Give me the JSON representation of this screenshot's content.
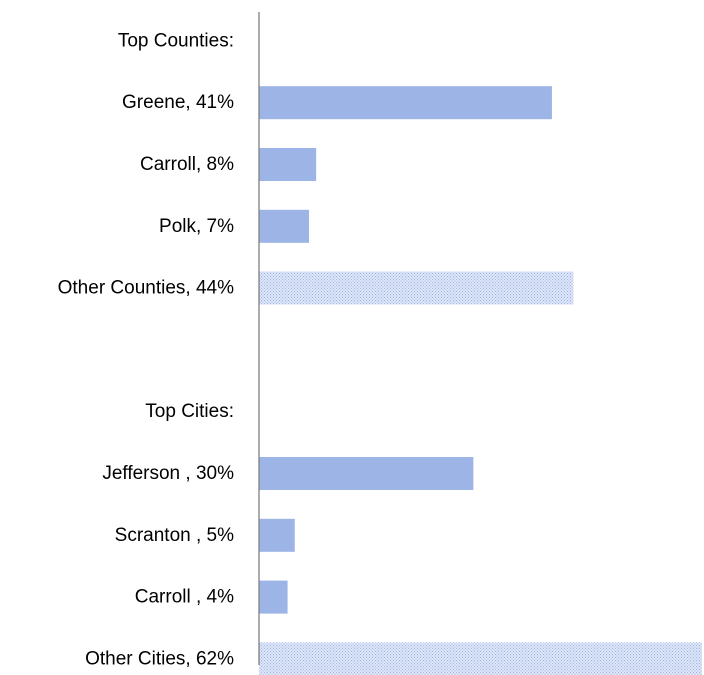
{
  "chart_data": {
    "type": "bar",
    "orientation": "horizontal",
    "categories": [
      "Top Counties:",
      "Greene, 41%",
      "Carroll, 8%",
      "Polk, 7%",
      "Other Counties, 44%",
      "",
      "Top Cities:",
      "Jefferson , 30%",
      "Scranton , 5%",
      "Carroll , 4%",
      "Other Cities, 62%"
    ],
    "values": [
      null,
      41,
      8,
      7,
      44,
      null,
      null,
      30,
      5,
      4,
      62
    ],
    "bar_styles": [
      "none",
      "solid",
      "solid",
      "solid",
      "hatched",
      "none",
      "none",
      "solid",
      "solid",
      "solid",
      "hatched"
    ],
    "xlim": [
      0,
      62
    ],
    "grid": false,
    "legend": "none",
    "colors": {
      "bar": "#9db4e6",
      "hatch_light": "#dfe7f7",
      "axis": "#7f7f7f",
      "text": "#000000"
    }
  }
}
